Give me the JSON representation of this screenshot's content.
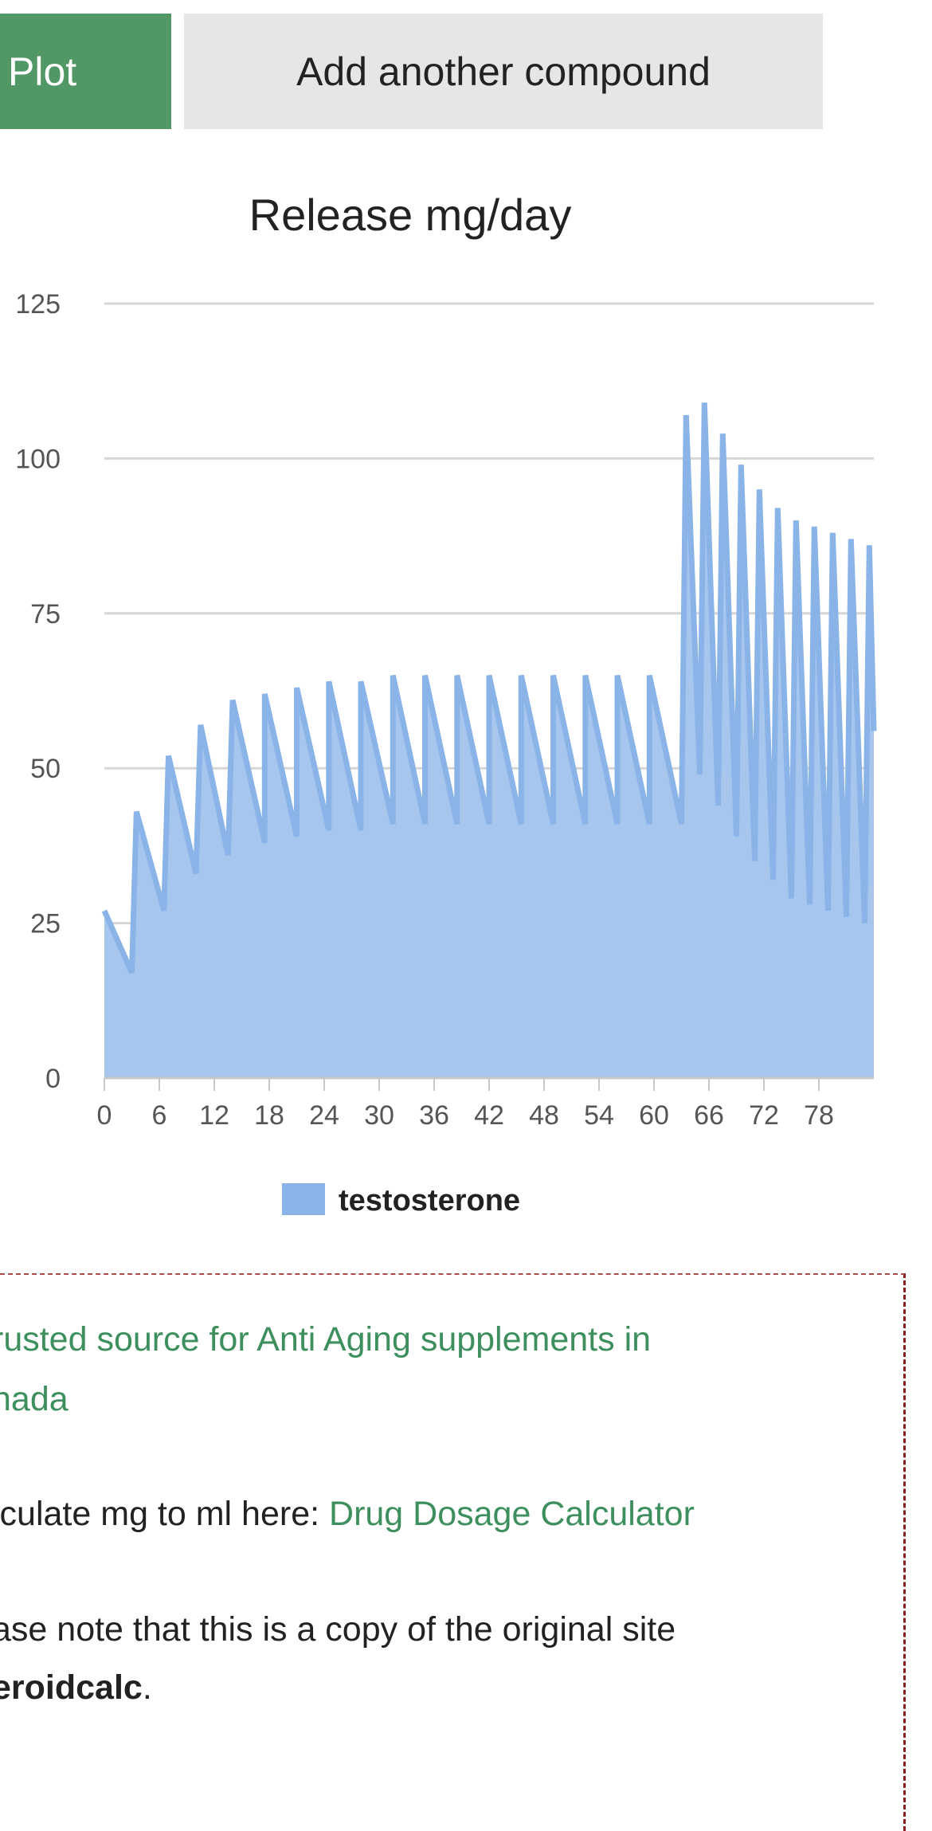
{
  "buttons": {
    "plot_label": "Plot",
    "add_label": "Add another compound"
  },
  "colors": {
    "plot_button": "#529766",
    "add_button": "#e6e6e6",
    "series_line": "#8ab4e8",
    "series_fill": "#a6c6ee",
    "link": "#3d8f5d",
    "notice_border": "#a94a4a"
  },
  "chart_data": {
    "type": "area",
    "title": "Release mg/day",
    "xlabel": "",
    "ylabel": "",
    "ylim": [
      0,
      125
    ],
    "xlim": [
      0,
      84
    ],
    "y_ticks": [
      "0",
      "25",
      "50",
      "75",
      "100",
      "125"
    ],
    "x_ticks": [
      "0",
      "6",
      "12",
      "18",
      "24",
      "30",
      "36",
      "42",
      "48",
      "54",
      "60",
      "66",
      "72",
      "78"
    ],
    "grid": true,
    "legend_position": "bottom",
    "series": [
      {
        "name": "testosterone",
        "x": [
          0,
          3,
          3.5,
          6.5,
          7,
          10,
          10.5,
          13.5,
          14,
          17.5,
          17.5,
          21,
          21,
          24.5,
          24.5,
          28,
          28,
          31.5,
          31.5,
          35,
          35,
          38.5,
          38.5,
          42,
          42,
          45.5,
          45.5,
          49,
          49,
          52.5,
          52.5,
          56,
          56,
          59.5,
          59.5,
          63,
          63.5,
          65,
          65.5,
          67,
          67.5,
          69,
          69.5,
          71,
          71.5,
          73,
          73.5,
          75,
          75.5,
          77,
          77.5,
          79,
          79.5,
          81,
          81.5,
          83,
          83.5,
          84
        ],
        "values": [
          27,
          17,
          43,
          27,
          52,
          33,
          57,
          36,
          61,
          38,
          62,
          39,
          63,
          40,
          64,
          40,
          64,
          41,
          65,
          41,
          65,
          41,
          65,
          41,
          65,
          41,
          65,
          41,
          65,
          41,
          65,
          41,
          65,
          41,
          65,
          41,
          107,
          49,
          109,
          44,
          104,
          39,
          99,
          35,
          95,
          32,
          92,
          29,
          90,
          28,
          89,
          27,
          88,
          26,
          87,
          25,
          86,
          56
        ]
      }
    ]
  },
  "notice": {
    "line1": "rusted source for Anti Aging supplements in",
    "line2": "nada",
    "calc_prefix": "lculate mg to ml here: ",
    "calc_link": "Drug Dosage Calculator",
    "note_line1": "ase note that this is a copy of the original site",
    "note_bold": "eroidcalc",
    "note_period": "."
  }
}
